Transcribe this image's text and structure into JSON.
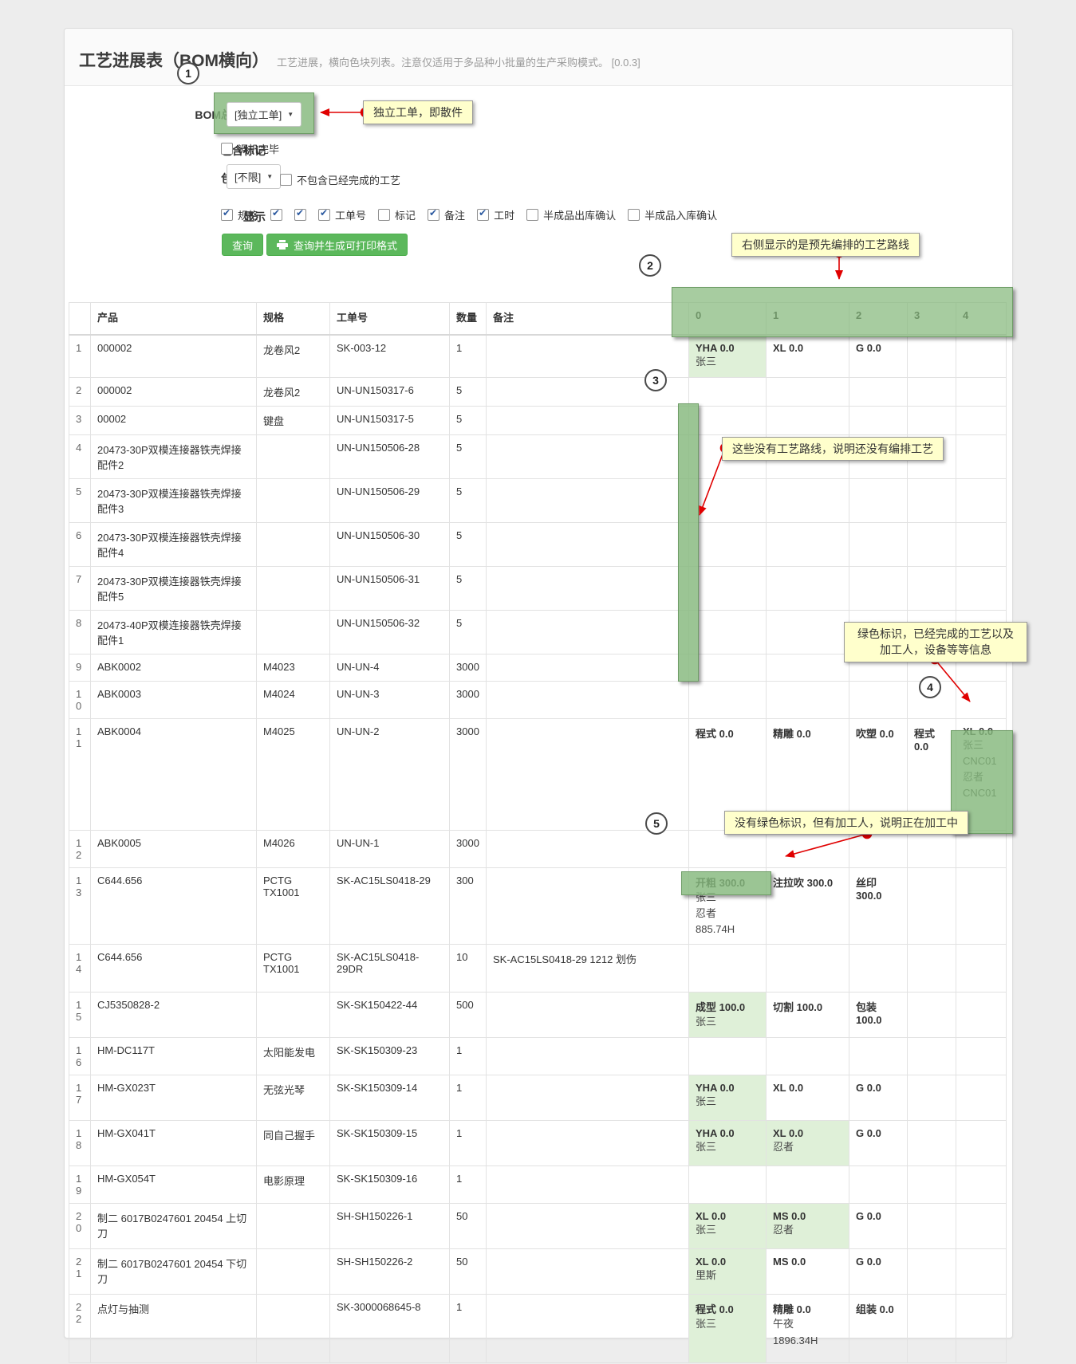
{
  "page": {
    "title": "工艺进展表（BOM横向）",
    "subtitle": "工艺进展，横向色块列表。注意仅适用于多品种小批量的生产采购模式。",
    "version": "[0.0.3]"
  },
  "form": {
    "bom_label": "BOM总装工单",
    "bom_select_value": "[独立工单]",
    "mark_label": "包含标记",
    "mark_option": "调机完毕",
    "craft_label": "包含工艺",
    "craft_select_value": "[不限]",
    "craft_option": "不包含已经完成的工艺",
    "display_label": "显示",
    "display_options": [
      {
        "label": "规格",
        "checked": true
      },
      {
        "label": "",
        "checked": true
      },
      {
        "label": "",
        "checked": true
      },
      {
        "label": "工单号",
        "checked": true
      },
      {
        "label": "标记",
        "checked": false
      },
      {
        "label": "备注",
        "checked": true
      },
      {
        "label": "工时",
        "checked": true
      },
      {
        "label": "半成品出库确认",
        "checked": false
      },
      {
        "label": "半成品入库确认",
        "checked": false
      }
    ],
    "query_button": "查询",
    "print_button": "查询并生成可打印格式"
  },
  "table": {
    "headers": [
      "",
      "产品",
      "规格",
      "工单号",
      "数量",
      "备注",
      "0",
      "1",
      "2",
      "3",
      "4"
    ],
    "rows": [
      {
        "idx": "1",
        "product": "000002",
        "spec": "龙卷风2",
        "order": "SK-003-12",
        "qty": "1",
        "remark": "",
        "steps": [
          {
            "name": "YHA",
            "val": "0.0",
            "lines": [
              "张三"
            ],
            "done": true
          },
          {
            "name": "XL",
            "val": "0.0"
          },
          {
            "name": "G",
            "val": "0.0"
          },
          null,
          null
        ]
      },
      {
        "idx": "2",
        "product": "000002",
        "spec": "龙卷风2",
        "order": "UN-UN150317-6",
        "qty": "5",
        "remark": "",
        "steps": [
          null,
          null,
          null,
          null,
          null
        ]
      },
      {
        "idx": "3",
        "product": "00002",
        "spec": "键盘",
        "order": "UN-UN150317-5",
        "qty": "5",
        "remark": "",
        "steps": [
          null,
          null,
          null,
          null,
          null
        ]
      },
      {
        "idx": "4",
        "product": "20473-30P双模连接器铁壳焊接配件2",
        "spec": "",
        "order": "UN-UN150506-28",
        "qty": "5",
        "remark": "",
        "steps": [
          null,
          null,
          null,
          null,
          null
        ]
      },
      {
        "idx": "5",
        "product": "20473-30P双模连接器铁壳焊接配件3",
        "spec": "",
        "order": "UN-UN150506-29",
        "qty": "5",
        "remark": "",
        "steps": [
          null,
          null,
          null,
          null,
          null
        ]
      },
      {
        "idx": "6",
        "product": "20473-30P双模连接器铁壳焊接配件4",
        "spec": "",
        "order": "UN-UN150506-30",
        "qty": "5",
        "remark": "",
        "steps": [
          null,
          null,
          null,
          null,
          null
        ]
      },
      {
        "idx": "7",
        "product": "20473-30P双模连接器铁壳焊接配件5",
        "spec": "",
        "order": "UN-UN150506-31",
        "qty": "5",
        "remark": "",
        "steps": [
          null,
          null,
          null,
          null,
          null
        ]
      },
      {
        "idx": "8",
        "product": "20473-40P双模连接器铁壳焊接配件1",
        "spec": "",
        "order": "UN-UN150506-32",
        "qty": "5",
        "remark": "",
        "steps": [
          null,
          null,
          null,
          null,
          null
        ]
      },
      {
        "idx": "9",
        "product": "ABK0002",
        "spec": "M4023",
        "order": "UN-UN-4",
        "qty": "3000",
        "remark": "",
        "steps": [
          null,
          null,
          null,
          null,
          null
        ]
      },
      {
        "idx": "10",
        "product": "ABK0003",
        "spec": "M4024",
        "order": "UN-UN-3",
        "qty": "3000",
        "remark": "",
        "steps": [
          null,
          null,
          null,
          null,
          null
        ]
      },
      {
        "idx": "11",
        "product": "ABK0004",
        "spec": "M4025",
        "order": "UN-UN-2",
        "qty": "3000",
        "remark": "",
        "steps": [
          {
            "name": "程式",
            "val": "0.0"
          },
          {
            "name": "精雕",
            "val": "0.0"
          },
          {
            "name": "吹塑",
            "val": "0.0"
          },
          {
            "name": "程式",
            "val": "0.0"
          },
          {
            "name": "XL",
            "val": "0.0",
            "lines": [
              "张三",
              "CNC01",
              "忍者",
              "CNC01"
            ],
            "overlay": true
          }
        ]
      },
      {
        "idx": "12",
        "product": "ABK0005",
        "spec": "M4026",
        "order": "UN-UN-1",
        "qty": "3000",
        "remark": "",
        "steps": [
          null,
          null,
          null,
          null,
          null
        ]
      },
      {
        "idx": "13",
        "product": "C644.656",
        "spec": "PCTG TX1001",
        "order": "SK-AC15LS0418-29",
        "qty": "300",
        "remark": "",
        "steps": [
          {
            "name": "开粗",
            "val": "300.0",
            "lines": [
              "张三",
              "忍者",
              "885.74H"
            ],
            "boxed": true
          },
          {
            "name": "注拉吹",
            "val": "300.0"
          },
          {
            "name": "丝印",
            "val": "300.0"
          },
          null,
          null
        ]
      },
      {
        "idx": "14",
        "product": "C644.656",
        "spec": "PCTG TX1001",
        "order": "SK-AC15LS0418-29DR",
        "qty": "10",
        "remark": "SK-AC15LS0418-29 1212 划伤",
        "steps": [
          null,
          null,
          null,
          null,
          null
        ]
      },
      {
        "idx": "15",
        "product": "CJ5350828-2",
        "spec": "",
        "order": "SK-SK150422-44",
        "qty": "500",
        "remark": "",
        "steps": [
          {
            "name": "成型",
            "val": "100.0",
            "lines": [
              "张三"
            ],
            "done": true
          },
          {
            "name": "切割",
            "val": "100.0"
          },
          {
            "name": "包装",
            "val": "100.0"
          },
          null,
          null
        ]
      },
      {
        "idx": "16",
        "product": "HM-DC117T",
        "spec": "太阳能发电",
        "order": "SK-SK150309-23",
        "qty": "1",
        "remark": "",
        "steps": [
          null,
          null,
          null,
          null,
          null
        ]
      },
      {
        "idx": "17",
        "product": "HM-GX023T",
        "spec": "无弦光琴",
        "order": "SK-SK150309-14",
        "qty": "1",
        "remark": "",
        "steps": [
          {
            "name": "YHA",
            "val": "0.0",
            "lines": [
              "张三"
            ],
            "done": true
          },
          {
            "name": "XL",
            "val": "0.0"
          },
          {
            "name": "G",
            "val": "0.0"
          },
          null,
          null
        ]
      },
      {
        "idx": "18",
        "product": "HM-GX041T",
        "spec": "同自己握手",
        "order": "SK-SK150309-15",
        "qty": "1",
        "remark": "",
        "steps": [
          {
            "name": "YHA",
            "val": "0.0",
            "lines": [
              "张三"
            ],
            "done": true
          },
          {
            "name": "XL",
            "val": "0.0",
            "lines": [
              "忍者"
            ],
            "done": true
          },
          {
            "name": "G",
            "val": "0.0"
          },
          null,
          null
        ]
      },
      {
        "idx": "19",
        "product": "HM-GX054T",
        "spec": "电影原理",
        "order": "SK-SK150309-16",
        "qty": "1",
        "remark": "",
        "steps": [
          null,
          null,
          null,
          null,
          null
        ]
      },
      {
        "idx": "20",
        "product": "制二 6017B0247601  20454 上切刀",
        "spec": "",
        "order": "SH-SH150226-1",
        "qty": "50",
        "remark": "",
        "steps": [
          {
            "name": "XL",
            "val": "0.0",
            "lines": [
              "张三"
            ],
            "done": true
          },
          {
            "name": "MS",
            "val": "0.0",
            "lines": [
              "忍者"
            ],
            "done": true
          },
          {
            "name": "G",
            "val": "0.0"
          },
          null,
          null
        ]
      },
      {
        "idx": "21",
        "product": "制二 6017B0247601  20454 下切刀",
        "spec": "",
        "order": "SH-SH150226-2",
        "qty": "50",
        "remark": "",
        "steps": [
          {
            "name": "XL",
            "val": "0.0",
            "lines": [
              "里斯"
            ],
            "done": true
          },
          {
            "name": "MS",
            "val": "0.0"
          },
          {
            "name": "G",
            "val": "0.0"
          },
          null,
          null
        ]
      },
      {
        "idx": "22",
        "product": "点灯与抽测",
        "spec": "",
        "order": "SK-3000068645-8",
        "qty": "1",
        "remark": "",
        "steps": [
          {
            "name": "程式",
            "val": "0.0",
            "lines": [
              "张三"
            ],
            "done": true
          },
          {
            "name": "精雕",
            "val": "0.0",
            "lines": [
              "午夜",
              "1896.34H"
            ]
          },
          {
            "name": "组装",
            "val": "0.0"
          },
          null,
          null
        ]
      }
    ]
  },
  "annotations": {
    "circles": [
      "1",
      "2",
      "3",
      "4",
      "5"
    ],
    "callouts": [
      {
        "id": "A",
        "text": "独立工单，即散件"
      },
      {
        "id": "B",
        "text": "右侧显示的是预先编排的工艺路线"
      },
      {
        "id": "C",
        "text": "这些没有工艺路线，说明还没有编排工艺"
      },
      {
        "id": "D",
        "text": "绿色标识，已经完成的工艺以及加工人，设备等等信息"
      },
      {
        "id": "E",
        "text": "没有绿色标识，但有加工人，说明正在加工中"
      }
    ]
  },
  "colors": {
    "accent_green": "#5cb85c",
    "done_cell_green": "#dff0d8",
    "overlay_green": "#85b87c",
    "callout_yellow": "#ffffcc",
    "arrow_red": "#e00000"
  }
}
